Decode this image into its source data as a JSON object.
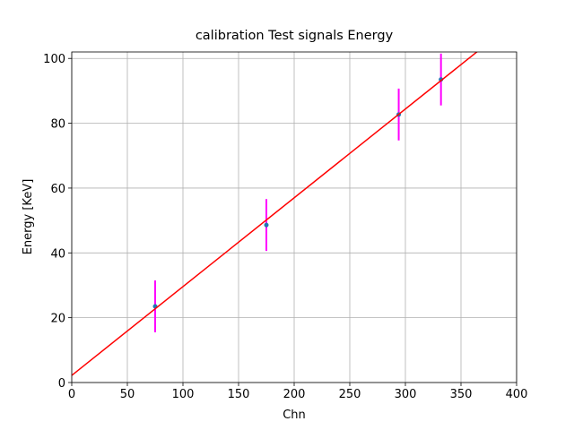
{
  "chart_data": {
    "type": "scatter",
    "title": "calibration Test signals Energy",
    "xlabel": "Chn",
    "ylabel": "Energy [KeV]",
    "xlim": [
      0,
      400
    ],
    "ylim": [
      0,
      102
    ],
    "xticks": [
      0,
      50,
      100,
      150,
      200,
      250,
      300,
      350,
      400
    ],
    "yticks": [
      0,
      20,
      40,
      60,
      80,
      100
    ],
    "grid": true,
    "series": [
      {
        "type": "errorbar",
        "x": [
          75,
          175,
          294,
          332
        ],
        "values": [
          23.5,
          48.6,
          82.7,
          93.5
        ],
        "errors": [
          8,
          8,
          8,
          8
        ],
        "color": "#1f77b4",
        "error_color": "#ff00ff"
      },
      {
        "type": "line",
        "x": [
          0,
          400
        ],
        "values": [
          2.2,
          111.8
        ],
        "color": "#ff0000"
      }
    ]
  }
}
